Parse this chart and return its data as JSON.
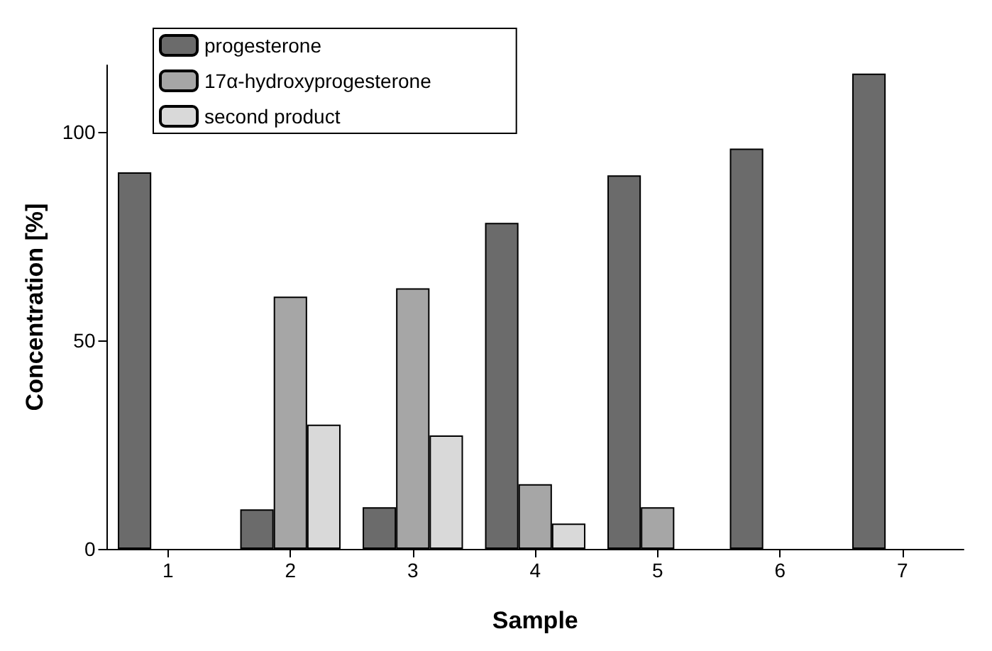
{
  "chart_data": {
    "type": "bar",
    "xlabel": "Sample",
    "ylabel": "Concentration [%]",
    "categories": [
      "1",
      "2",
      "3",
      "4",
      "5",
      "6",
      "7"
    ],
    "series": [
      {
        "name": "progesterone",
        "color": "#6b6b6b",
        "values": [
          90.3,
          9.5,
          10,
          78.2,
          89.6,
          96,
          114
        ]
      },
      {
        "name": "17α-hydroxyprogesterone",
        "color": "#a6a6a6",
        "values": [
          null,
          60.5,
          62.5,
          15.5,
          10,
          null,
          null
        ]
      },
      {
        "name": "second product",
        "color": "#d9d9d9",
        "values": [
          null,
          29.8,
          27.2,
          6.1,
          null,
          null,
          null
        ]
      }
    ],
    "ylim": [
      0,
      116
    ],
    "yticks": [
      0,
      50,
      100
    ],
    "grid": false,
    "legend": "top left"
  }
}
